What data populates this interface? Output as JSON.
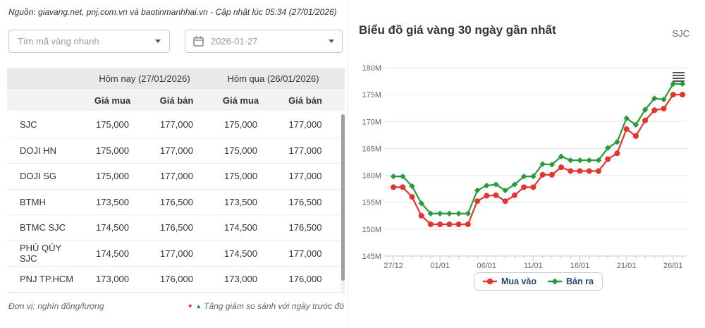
{
  "source_bar": {
    "text": "Nguồn: giavang.net, pnj.com.vn và baotinmanhhai.vn - Cập nhật lúc 05:34 (27/01/2026)"
  },
  "filters": {
    "search_placeholder": "Tìm mã vàng nhanh",
    "date_value": "2026-01-27",
    "calendar_icon": "calendar-icon",
    "caret_icon": "chevron-down-icon"
  },
  "table": {
    "group_headers": [
      "Hôm nay (27/01/2026)",
      "Hôm qua (26/01/2026)"
    ],
    "sub_headers": [
      "Giá mua",
      "Giá bán",
      "Giá mua",
      "Giá bán"
    ],
    "rows": [
      {
        "name": "SJC",
        "values": [
          "175,000",
          "177,000",
          "175,000",
          "177,000"
        ]
      },
      {
        "name": "DOJI HN",
        "values": [
          "175,000",
          "177,000",
          "175,000",
          "177,000"
        ]
      },
      {
        "name": "DOJI SG",
        "values": [
          "175,000",
          "177,000",
          "175,000",
          "177,000"
        ]
      },
      {
        "name": "BTMH",
        "values": [
          "173,500",
          "176,500",
          "173,500",
          "176,500"
        ]
      },
      {
        "name": "BTMC SJC",
        "values": [
          "174,500",
          "176,500",
          "174,500",
          "176,500"
        ]
      },
      {
        "name": "PHÚ QÚY SJC",
        "values": [
          "174,500",
          "177,000",
          "174,500",
          "177,000"
        ]
      },
      {
        "name": "PNJ TP.HCM",
        "values": [
          "173,000",
          "176,000",
          "173,000",
          "176,000"
        ]
      }
    ]
  },
  "footer": {
    "unit_note": "Đơn vị: nghìn đồng/lượng",
    "compare_note": "Tăng giảm so sánh với ngày trước đó",
    "down_triangle": "▼",
    "up_triangle": "▲",
    "down_color": "#d32f2f",
    "up_color": "#1e8e3e"
  },
  "chart": {
    "title": "Biểu đồ giá vàng 30 ngày gần nhất",
    "code_badge": "SJC",
    "menu_icon": "hamburger-menu-icon"
  },
  "chart_data": {
    "type": "line",
    "title": "Biểu đồ giá vàng 30 ngày gần nhất",
    "y_unit_suffix": "M",
    "ylim": [
      145,
      180
    ],
    "ytick_values": [
      145,
      150,
      155,
      160,
      165,
      170,
      175,
      180
    ],
    "grid": true,
    "legend_position": "bottom",
    "x": [
      "27/12",
      "28/12",
      "29/12",
      "30/12",
      "31/12",
      "01/01",
      "02/01",
      "03/01",
      "04/01",
      "05/01",
      "06/01",
      "07/01",
      "08/01",
      "09/01",
      "10/01",
      "11/01",
      "12/01",
      "13/01",
      "14/01",
      "15/01",
      "16/01",
      "17/01",
      "18/01",
      "19/01",
      "20/01",
      "21/01",
      "22/01",
      "23/01",
      "24/01",
      "25/01",
      "26/01",
      "27/01"
    ],
    "xtick_labels": [
      "27/12",
      "01/01",
      "06/01",
      "11/01",
      "16/01",
      "21/01",
      "26/01"
    ],
    "xtick_indices": [
      0,
      5,
      10,
      15,
      20,
      25,
      30
    ],
    "series": [
      {
        "name": "Mua vào",
        "color": "#e2352e",
        "marker": "circle",
        "values": [
          157.8,
          157.8,
          156.0,
          152.5,
          150.9,
          150.9,
          150.9,
          150.9,
          150.9,
          155.2,
          156.2,
          156.3,
          155.2,
          156.3,
          157.8,
          157.8,
          160.1,
          160.1,
          161.5,
          160.8,
          160.8,
          160.8,
          160.8,
          163.0,
          164.1,
          168.6,
          167.3,
          170.2,
          172.1,
          172.4,
          175.0,
          175.0
        ]
      },
      {
        "name": "Bán ra",
        "color": "#279b3a",
        "marker": "diamond",
        "values": [
          159.8,
          159.8,
          158.0,
          154.8,
          152.9,
          152.9,
          152.9,
          152.9,
          152.9,
          157.2,
          158.1,
          158.3,
          157.2,
          158.3,
          159.8,
          159.8,
          162.1,
          162.0,
          163.5,
          162.8,
          162.8,
          162.8,
          162.8,
          165.1,
          166.2,
          170.6,
          169.4,
          172.2,
          174.3,
          174.1,
          177.0,
          177.0
        ]
      }
    ]
  }
}
